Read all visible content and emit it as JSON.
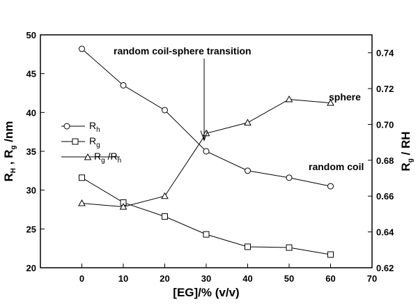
{
  "chart_data": {
    "type": "line",
    "xlabel": "[EG]/% (v/v)",
    "ylabel_left": {
      "main": "R",
      "sub1": "H",
      "mid": " , R",
      "sub2": "g",
      "tail": " /nm"
    },
    "ylabel_right": {
      "main": "R",
      "sub1": "g",
      "tail": " / RH"
    },
    "xlim": [
      -10,
      70
    ],
    "ylim_left": [
      20,
      50
    ],
    "ylim_right": [
      0.62,
      0.75
    ],
    "x_ticks": [
      0,
      10,
      20,
      30,
      40,
      50,
      60,
      70
    ],
    "y_left_ticks": [
      20,
      25,
      30,
      35,
      40,
      45,
      50
    ],
    "y_right_ticks": [
      "0.62",
      "0.64",
      "0.66",
      "0.68",
      "0.70",
      "0.72",
      "0.74"
    ],
    "grid": false,
    "series": [
      {
        "id": "rh",
        "name": {
          "main": "R",
          "sub": "h",
          "tail": ""
        },
        "axis": "left",
        "marker": "circle",
        "x": [
          0,
          10,
          20,
          30,
          40,
          50,
          60
        ],
        "y": [
          48.2,
          43.5,
          40.3,
          35.0,
          32.5,
          31.6,
          30.5
        ]
      },
      {
        "id": "rg",
        "name": {
          "main": "R",
          "sub": "g",
          "tail": ""
        },
        "axis": "left",
        "marker": "square",
        "x": [
          0,
          10,
          20,
          30,
          40,
          50,
          60
        ],
        "y": [
          31.6,
          28.4,
          26.6,
          24.3,
          22.7,
          22.6,
          21.7
        ]
      },
      {
        "id": "ratio",
        "name": {
          "main": "R",
          "sub": "g",
          "tail": " /R",
          "sub2": "h"
        },
        "axis": "right",
        "marker": "triangle",
        "x": [
          0,
          10,
          20,
          30,
          40,
          50,
          60
        ],
        "y": [
          0.656,
          0.654,
          0.66,
          0.695,
          0.701,
          0.714,
          0.712
        ]
      }
    ],
    "annotations": [
      {
        "id": "transition",
        "text": "random coil-sphere transition",
        "arrow_to_x": 29.5,
        "arrow_to_y_left": 36.4
      },
      {
        "id": "sphere",
        "text": "sphere",
        "anchor_x": 53,
        "anchor_y_left": 42
      },
      {
        "id": "random-coil",
        "text": "random coil",
        "anchor_x": 45.5,
        "anchor_y_left": 32.8
      }
    ],
    "legend": {
      "placement": "left-middle"
    }
  }
}
